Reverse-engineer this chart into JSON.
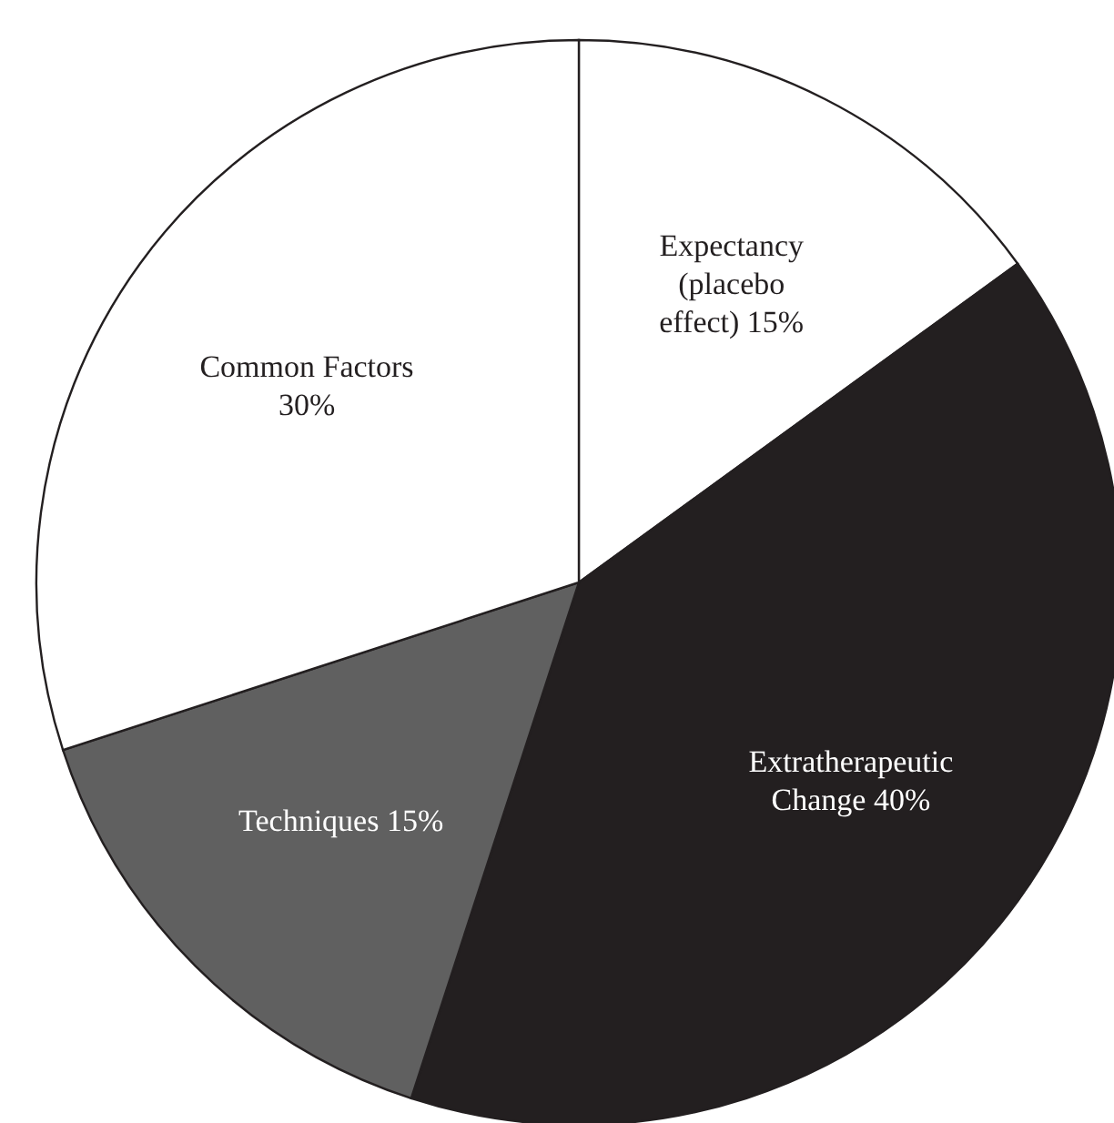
{
  "chart_data": {
    "type": "pie",
    "categories": [
      "Expectancy (placebo effect)",
      "Extratherapeutic Change",
      "Techniques",
      "Common Factors"
    ],
    "values": [
      15,
      40,
      15,
      30
    ],
    "value_labels": [
      "15%",
      "40%",
      "15%",
      "30%"
    ],
    "colors": [
      "#ffffff",
      "#231f20",
      "#606060",
      "#ffffff"
    ]
  }
}
